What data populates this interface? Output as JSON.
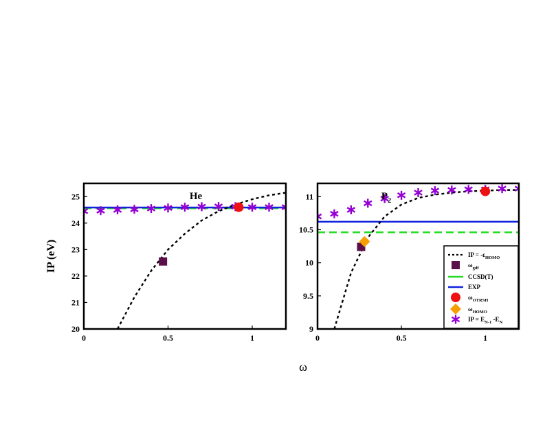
{
  "figure": {
    "ylabel": "IP (eV)",
    "xlabel": "ω"
  },
  "legend": {
    "placement": "bottom-right",
    "items": [
      {
        "key": "ip_homo",
        "label": "IP = -ε",
        "sub": "HOMO",
        "symbol": "dotted-line",
        "color": "#000000"
      },
      {
        "key": "w_gdf",
        "label": "ω",
        "sub": "gdf",
        "symbol": "square",
        "color": "#5B0F4A"
      },
      {
        "key": "ccsdt",
        "label": "CCSD(T)",
        "sub": "",
        "symbol": "dashed-line",
        "color": "#22DD22"
      },
      {
        "key": "exp",
        "label": "EXP",
        "sub": "",
        "symbol": "solid-line",
        "color": "#1122DD"
      },
      {
        "key": "w_otrsh",
        "label": "ω",
        "sub": "OTRSH",
        "symbol": "circle",
        "color": "#EE1111"
      },
      {
        "key": "w_homo",
        "label": "ω",
        "sub": "HOMO",
        "symbol": "diamond",
        "color": "#F5A000"
      },
      {
        "key": "ip_diff",
        "label": "IP = E",
        "sub": "N-1",
        "label2": " -E",
        "sub2": "N",
        "symbol": "asterisk",
        "color": "#9400D3"
      }
    ]
  },
  "chart_data": [
    {
      "type": "line",
      "title": "He",
      "xlim": [
        0,
        1.2
      ],
      "ylim": [
        20,
        25.5
      ],
      "xticks": [
        0,
        0.5,
        1
      ],
      "xtick_labels": [
        "0",
        "0.5",
        "1"
      ],
      "yticks": [
        20,
        21,
        22,
        23,
        24,
        25
      ],
      "ytick_labels": [
        "20",
        "21",
        "22",
        "23",
        "24",
        "25"
      ],
      "grid": false,
      "series": [
        {
          "key": "ip_homo",
          "x": [
            0.2,
            0.3,
            0.4,
            0.5,
            0.6,
            0.7,
            0.8,
            0.9,
            1.0,
            1.1,
            1.2
          ],
          "y": [
            20.0,
            21.2,
            22.2,
            23.0,
            23.6,
            24.1,
            24.45,
            24.7,
            24.9,
            25.05,
            25.15
          ]
        },
        {
          "key": "ccsdt",
          "y_const": 24.56
        },
        {
          "key": "exp",
          "y_const": 24.59
        },
        {
          "key": "w_gdf",
          "x": [
            0.47
          ],
          "y": [
            22.55
          ]
        },
        {
          "key": "w_otrsh",
          "x": [
            0.92
          ],
          "y": [
            24.6
          ]
        },
        {
          "key": "ip_diff",
          "x": [
            0,
            0.1,
            0.2,
            0.3,
            0.4,
            0.5,
            0.6,
            0.7,
            0.8,
            0.9,
            1.0,
            1.1,
            1.2
          ],
          "y": [
            24.45,
            24.47,
            24.5,
            24.52,
            24.55,
            24.57,
            24.6,
            24.62,
            24.63,
            24.62,
            24.6,
            24.6,
            24.6
          ]
        }
      ]
    },
    {
      "type": "line",
      "title": "P",
      "title_sub": "2",
      "xlim": [
        0,
        1.2
      ],
      "ylim": [
        9,
        11.2
      ],
      "xticks": [
        0,
        0.5,
        1
      ],
      "xtick_labels": [
        "0",
        "0.5",
        "1"
      ],
      "yticks": [
        9,
        9.5,
        10,
        10.5,
        11
      ],
      "ytick_labels": [
        "9",
        "9.5",
        "10",
        "10.5",
        "11"
      ],
      "grid": false,
      "series": [
        {
          "key": "ip_homo",
          "x": [
            0.1,
            0.2,
            0.3,
            0.4,
            0.5,
            0.6,
            0.7,
            0.8,
            0.9,
            1.0,
            1.1,
            1.2
          ],
          "y": [
            9.0,
            9.85,
            10.38,
            10.7,
            10.88,
            10.98,
            11.03,
            11.06,
            11.08,
            11.09,
            11.1,
            11.1
          ]
        },
        {
          "key": "ccsdt",
          "y_const": 10.46
        },
        {
          "key": "exp",
          "y_const": 10.62
        },
        {
          "key": "w_gdf",
          "x": [
            0.26
          ],
          "y": [
            10.24
          ]
        },
        {
          "key": "w_homo",
          "x": [
            0.28
          ],
          "y": [
            10.32
          ]
        },
        {
          "key": "w_otrsh",
          "x": [
            1.0
          ],
          "y": [
            11.08
          ]
        },
        {
          "key": "ip_diff",
          "x": [
            0,
            0.1,
            0.2,
            0.3,
            0.4,
            0.5,
            0.6,
            0.7,
            0.8,
            0.9,
            1.0,
            1.1,
            1.2
          ],
          "y": [
            10.7,
            10.74,
            10.8,
            10.9,
            10.97,
            11.02,
            11.06,
            11.09,
            11.1,
            11.11,
            11.11,
            11.12,
            11.12
          ]
        }
      ]
    }
  ]
}
